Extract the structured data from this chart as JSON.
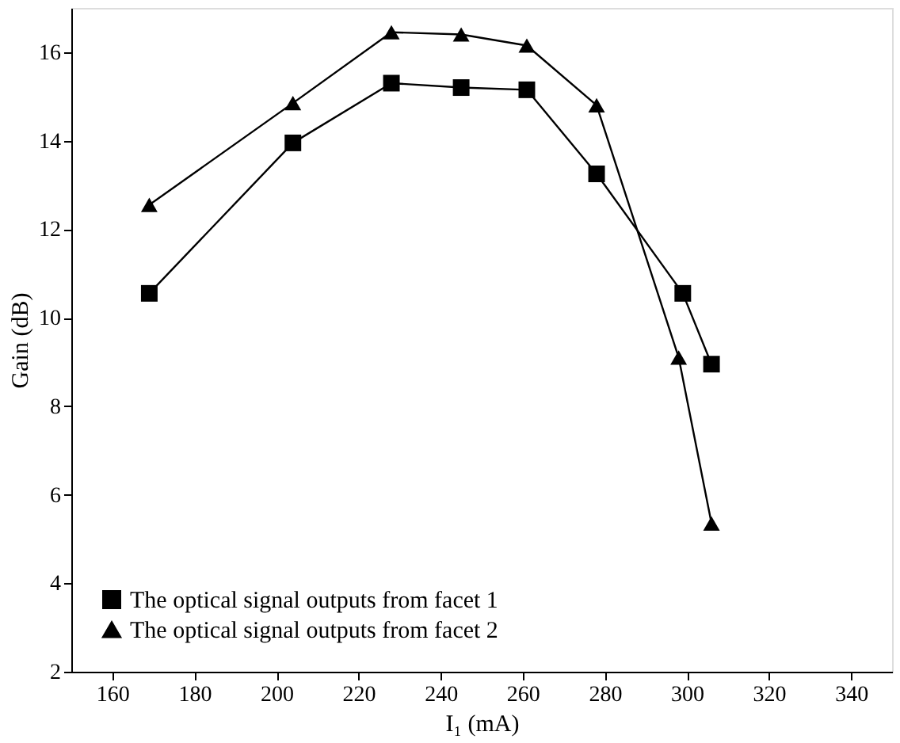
{
  "chart_data": {
    "type": "line",
    "xlabel": "I₁ (mA)",
    "ylabel": "Gain (dB)",
    "xlim": [
      150,
      350
    ],
    "xticks": [
      160,
      180,
      200,
      220,
      240,
      260,
      280,
      300,
      320,
      340
    ],
    "ylim": [
      2,
      17
    ],
    "yticks": [
      2,
      4,
      6,
      8,
      10,
      12,
      14,
      16
    ],
    "grid": false,
    "legend": "bottom left",
    "line_style": "solid",
    "series": [
      {
        "name": "The optical signal outputs from facet 1",
        "color": "#000000",
        "marker": "square",
        "x": [
          169,
          204,
          228,
          245,
          261,
          278,
          299,
          306
        ],
        "values": [
          10.55,
          13.95,
          15.3,
          15.2,
          15.15,
          13.25,
          10.55,
          8.95
        ]
      },
      {
        "name": "The optical signal outputs from facet 2",
        "color": "#000000",
        "marker": "triangle",
        "x": [
          169,
          204,
          228,
          245,
          261,
          278,
          298,
          306
        ],
        "values": [
          12.55,
          14.85,
          16.45,
          16.4,
          16.15,
          14.8,
          9.1,
          5.35
        ]
      }
    ]
  }
}
